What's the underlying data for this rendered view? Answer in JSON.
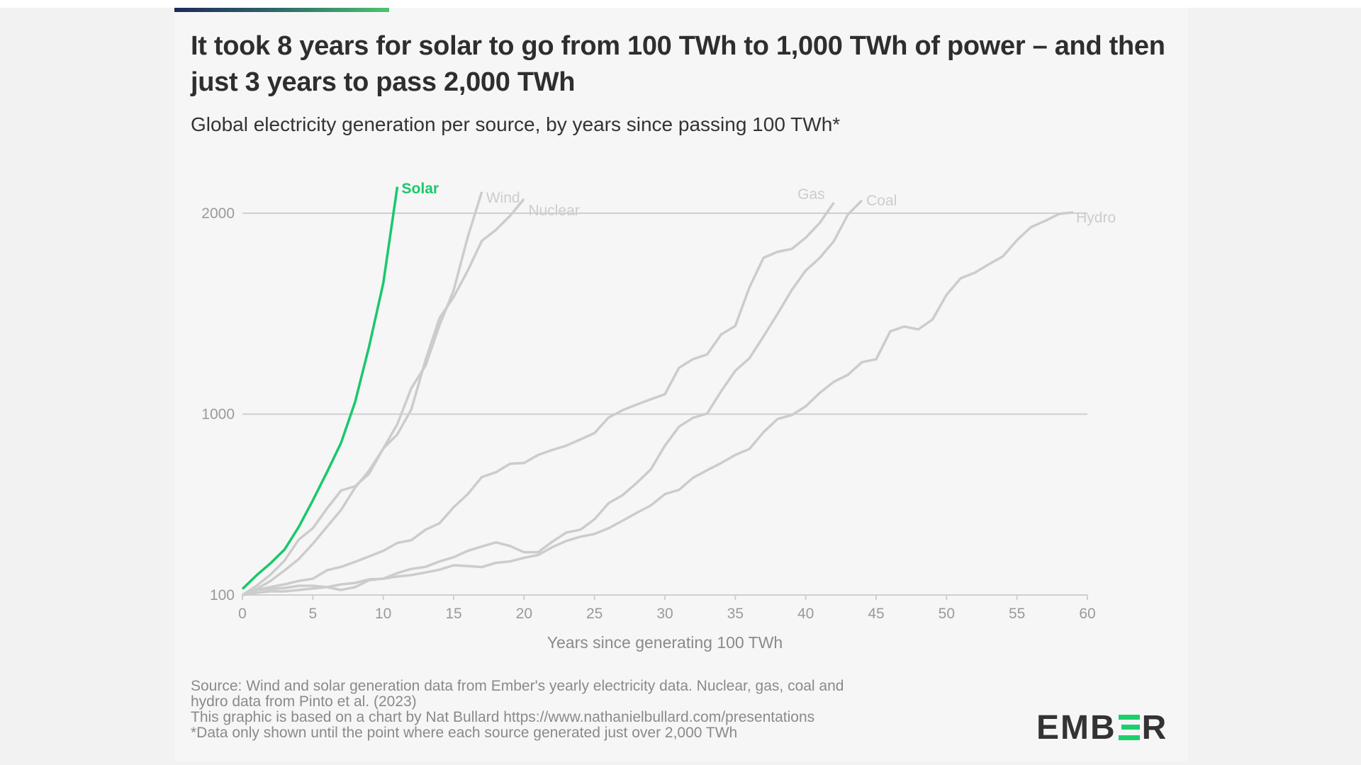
{
  "title": "It took 8 years for solar to go from 100 TWh to 1,000 TWh of power – and then just 3 years to pass 2,000 TWh",
  "subtitle": "Global electricity generation per source, by years since passing 100 TWh*",
  "footer": {
    "line1": "Source: Wind and solar generation data from Ember's yearly electricity data. Nuclear, gas, coal and",
    "line2": "hydro data from Pinto et al. (2023)",
    "line3": "This graphic is based on a chart by Nat Bullard https://www.nathanielbullard.com/presentations",
    "line4": "*Data only shown until the point where each source generated just over 2,000 TWh"
  },
  "logo": "EMBER",
  "colors": {
    "solar": "#19c86b",
    "other": "#cccccc",
    "grid": "#cfcfcf",
    "logo_accent": "#1bcf6e"
  },
  "chart_data": {
    "type": "line",
    "title": "",
    "xlabel": "Years since generating 100 TWh",
    "ylabel": "",
    "xlim": [
      0,
      60
    ],
    "ylim": [
      100,
      2000
    ],
    "x_ticks": [
      0,
      5,
      10,
      15,
      20,
      25,
      30,
      35,
      40,
      45,
      50,
      55,
      60
    ],
    "y_ticks": [
      100,
      1000,
      2000
    ],
    "grid": "horizontal",
    "legend": "none (direct labels at line ends)",
    "series": [
      {
        "name": "Solar",
        "highlight": true,
        "values": [
          130,
          198,
          258,
          327,
          439,
          571,
          711,
          857,
          1060,
          1338,
          1652,
          2131
        ]
      },
      {
        "name": "Wind",
        "values": [
          100,
          130,
          170,
          223,
          279,
          355,
          439,
          523,
          634,
          720,
          829,
          950,
          1130,
          1241,
          1443,
          1617,
          1882,
          2106
        ]
      },
      {
        "name": "Nuclear",
        "values": [
          100,
          146,
          202,
          272,
          376,
          432,
          530,
          620,
          641,
          704,
          829,
          899,
          1025,
          1269,
          1478,
          1583,
          1715,
          1862,
          1917,
          1987,
          2071
        ]
      },
      {
        "name": "Gas",
        "values": [
          100,
          125,
          140,
          153,
          170,
          181,
          223,
          240,
          265,
          292,
          320,
          359,
          373,
          425,
          457,
          537,
          602,
          687,
          711,
          753,
          757,
          797,
          822,
          843,
          874,
          906,
          983,
          1020,
          1048,
          1074,
          1099,
          1231,
          1274,
          1297,
          1397,
          1439,
          1631,
          1778,
          1808,
          1822,
          1878,
          1952,
          2053
        ]
      },
      {
        "name": "Coal",
        "values": [
          100,
          125,
          130,
          135,
          146,
          146,
          139,
          125,
          139,
          174,
          181,
          209,
          230,
          240,
          267,
          288,
          320,
          341,
          362,
          344,
          313,
          313,
          365,
          411,
          425,
          477,
          557,
          597,
          658,
          725,
          843,
          938,
          982,
          1003,
          1115,
          1216,
          1278,
          1387,
          1499,
          1617,
          1715,
          1778,
          1861,
          1994,
          2064
        ]
      },
      {
        "name": "Hydro",
        "values": [
          100,
          111,
          118,
          118,
          125,
          132,
          139,
          153,
          160,
          178,
          181,
          192,
          199,
          212,
          226,
          248,
          244,
          239,
          260,
          267,
          285,
          299,
          338,
          369,
          390,
          404,
          432,
          470,
          509,
          546,
          602,
          623,
          683,
          721,
          757,
          797,
          827,
          910,
          976,
          995,
          1039,
          1106,
          1161,
          1196,
          1259,
          1273,
          1412,
          1436,
          1422,
          1471,
          1594,
          1676,
          1704,
          1746,
          1785,
          1866,
          1931,
          1962,
          1997,
          2004
        ]
      }
    ]
  }
}
